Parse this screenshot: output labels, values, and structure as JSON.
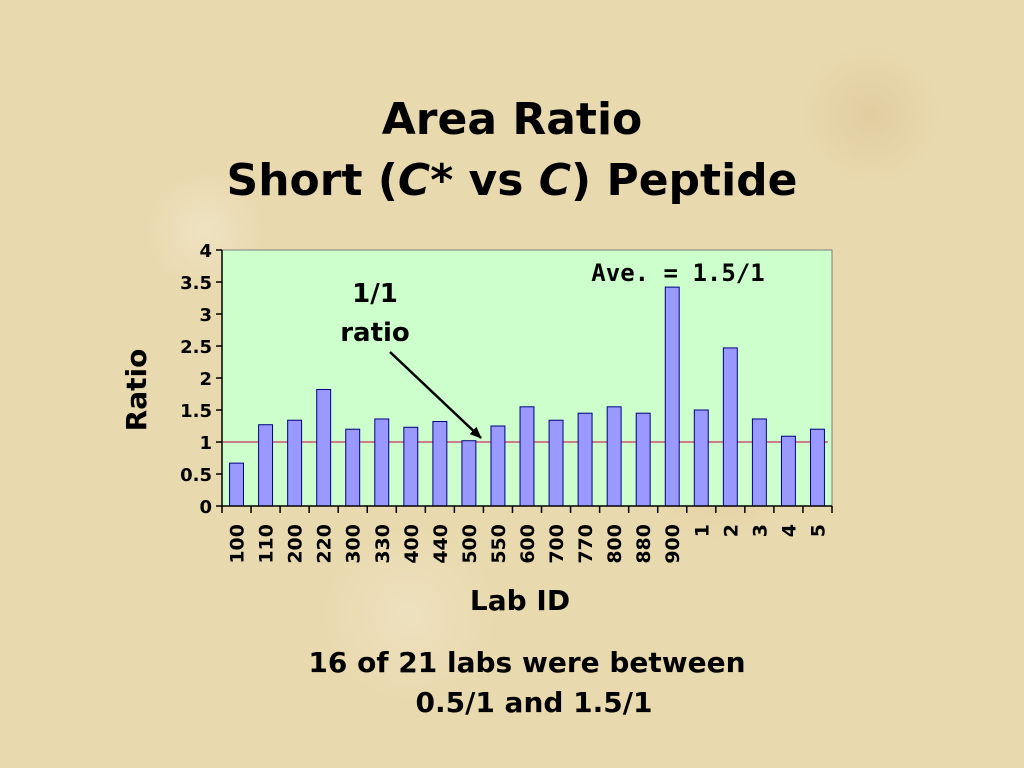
{
  "slide": {
    "title_line1": "Area Ratio",
    "title_line2_pre": "Short (",
    "title_line2_c_star": "C*",
    "title_line2_mid": " vs ",
    "title_line2_c": "C",
    "title_line2_post": ") Peptide",
    "footer_line1": "16 of 21 labs were between",
    "footer_line2": "0.5/1 and 1.5/1"
  },
  "chart_data": {
    "type": "bar",
    "xlabel": "Lab ID",
    "ylabel": "Ratio",
    "ylim": [
      0,
      4
    ],
    "yticks": [
      "0",
      "0.5",
      "1",
      "1.5",
      "2",
      "2.5",
      "3",
      "3.5",
      "4"
    ],
    "categories": [
      "100",
      "110",
      "200",
      "220",
      "300",
      "330",
      "400",
      "440",
      "500",
      "550",
      "600",
      "700",
      "770",
      "800",
      "880",
      "900",
      "1",
      "2",
      "3",
      "4",
      "5"
    ],
    "values": [
      0.67,
      1.27,
      1.34,
      1.82,
      1.2,
      1.36,
      1.23,
      1.32,
      1.02,
      1.25,
      1.55,
      1.34,
      1.45,
      1.55,
      1.45,
      3.42,
      1.5,
      2.47,
      1.36,
      1.09,
      1.2
    ],
    "reference_line": {
      "value": 1,
      "color": "#d03060"
    },
    "annotations": {
      "average": "Ave. = 1.5/1",
      "arrow_label_line1": "1/1",
      "arrow_label_line2": "ratio"
    },
    "colors": {
      "plot_background": "#ccffcc",
      "bar_fill": "#9999ff",
      "bar_stroke": "#000080"
    }
  }
}
